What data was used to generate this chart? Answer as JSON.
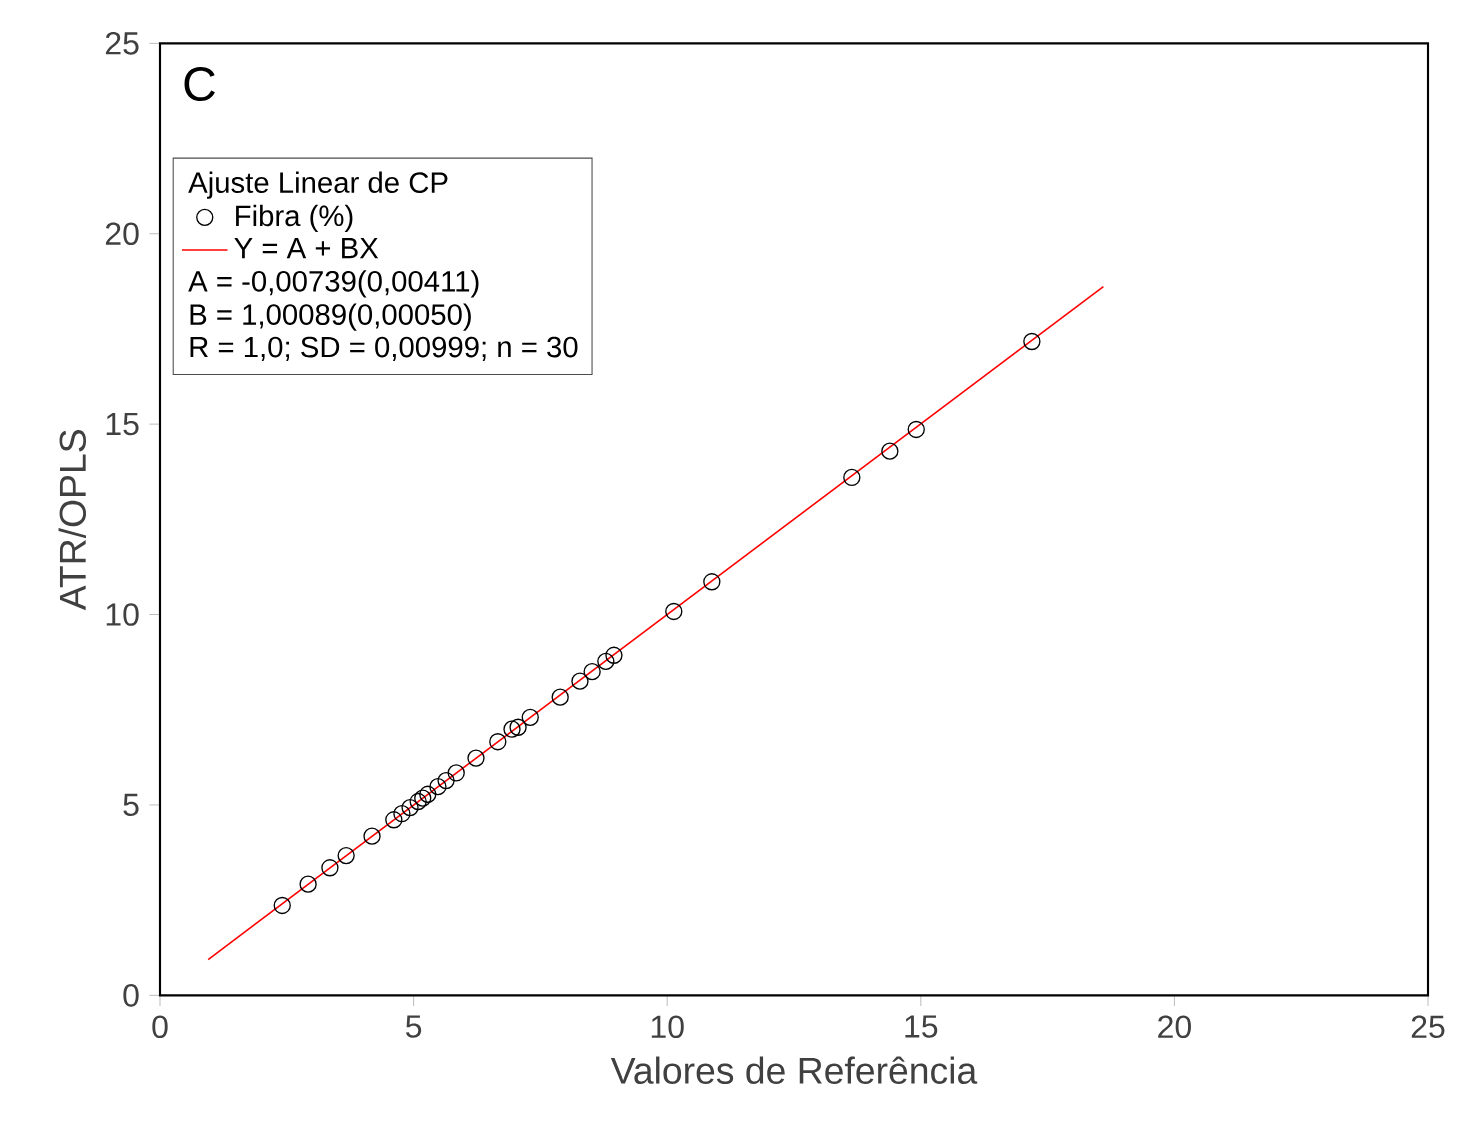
{
  "chart_data": {
    "type": "scatter",
    "xlabel": "Valores de Referência",
    "ylabel": "ATR/OPLS",
    "legend_title": "Ajuste Linear de CP",
    "xlim": [
      0,
      25
    ],
    "ylim": [
      0,
      25
    ],
    "xticks": [
      0,
      5,
      10,
      15,
      20,
      25
    ],
    "yticks": [
      0,
      5,
      10,
      15,
      20,
      25
    ],
    "grid": false,
    "legend": "top left",
    "marker": "circle",
    "series": [
      {
        "name": "Fibra (%)",
        "color": "#000000",
        "x": [
          2.41,
          2.92,
          3.35,
          3.67,
          4.18,
          4.61,
          4.77,
          4.93,
          5.09,
          5.18,
          5.28,
          5.48,
          5.64,
          5.84,
          6.23,
          6.66,
          6.94,
          7.06,
          7.3,
          7.89,
          8.28,
          8.52,
          8.79,
          8.95,
          10.13,
          10.88,
          13.64,
          14.39,
          14.91,
          17.19
        ],
        "values": [
          2.36,
          2.92,
          3.35,
          3.67,
          4.18,
          4.61,
          4.77,
          4.93,
          5.09,
          5.18,
          5.28,
          5.48,
          5.64,
          5.84,
          6.23,
          6.66,
          6.99,
          7.04,
          7.3,
          7.83,
          8.25,
          8.5,
          8.77,
          8.93,
          10.08,
          10.86,
          13.6,
          14.29,
          14.86,
          17.17
        ]
      },
      {
        "name": "Y = A + BX",
        "type": "line",
        "color": "#ff0000",
        "marker": "none",
        "x": [
          0.95,
          18.6
        ],
        "values": [
          0.94,
          18.61
        ]
      }
    ],
    "annotations": [
      "C",
      "A = -0,00739(0,00411)",
      "B =  1,00089(0,00050)",
      "R = 1,0; SD = 0,00999; n = 30"
    ]
  }
}
